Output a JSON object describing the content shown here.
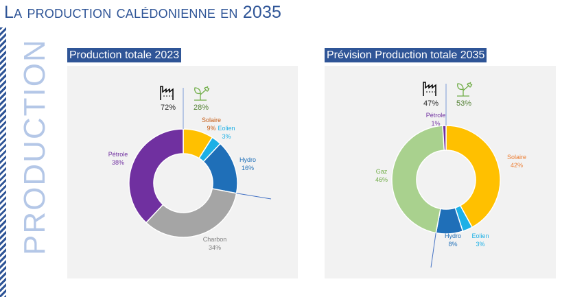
{
  "page": {
    "title_prefix": "La production calédonienne en",
    "title_year": "2035",
    "side_label": "PRODUCTION"
  },
  "colors": {
    "Solaire": "#FFC000",
    "Eolien": "#1CB0E6",
    "Hydro": "#1F6FB8",
    "Charbon": "#A5A5A5",
    "Pétrole": "#7030A0",
    "Gaz": "#A9D18E"
  },
  "chart_data": [
    {
      "type": "pie",
      "title": "Production totale 2023",
      "fossil_label": "72%",
      "renewable_label": "28%",
      "slices": [
        {
          "name": "Solaire",
          "value": 9,
          "label": "9%",
          "lc": "#C55A11"
        },
        {
          "name": "Eolien",
          "value": 3,
          "label": "3%",
          "lc": "#1CB0E6"
        },
        {
          "name": "Hydro",
          "value": 16,
          "label": "16%",
          "lc": "#1F6FB8"
        },
        {
          "name": "Charbon",
          "value": 34,
          "label": "34%",
          "lc": "#7F7F7F"
        },
        {
          "name": "Pétrole",
          "value": 38,
          "label": "38%",
          "lc": "#7030A0"
        }
      ]
    },
    {
      "type": "pie",
      "title": "Prévision Production totale 2035",
      "fossil_label": "47%",
      "renewable_label": "53%",
      "slices": [
        {
          "name": "Solaire",
          "value": 42,
          "label": "42%",
          "lc": "#ED7D31"
        },
        {
          "name": "Eolien",
          "value": 3,
          "label": "3%",
          "lc": "#1CB0E6"
        },
        {
          "name": "Hydro",
          "value": 8,
          "label": "8%",
          "lc": "#1F6FB8"
        },
        {
          "name": "Gaz",
          "value": 46,
          "label": "46%",
          "lc": "#70AD47"
        },
        {
          "name": "Pétrole",
          "value": 1,
          "label": "1%",
          "lc": "#7030A0"
        }
      ]
    }
  ]
}
